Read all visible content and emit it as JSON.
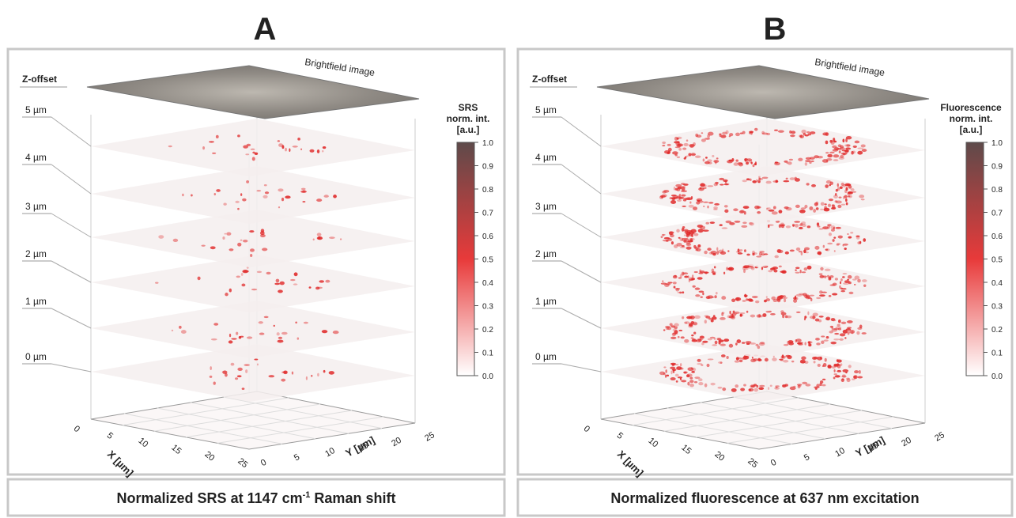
{
  "panels": [
    {
      "letter": "A",
      "z_label": "Z-offset",
      "brightfield": "Brightfield image",
      "z_levels": [
        "5 µm",
        "4 µm",
        "3 µm",
        "2 µm",
        "1 µm",
        "0 µm"
      ],
      "colorbar_title": [
        "SRS",
        "norm. int.",
        "[a.u.]"
      ],
      "colorbar_ticks": [
        "0.0",
        "0.1",
        "0.2",
        "0.3",
        "0.4",
        "0.5",
        "0.6",
        "0.7",
        "0.8",
        "0.9",
        "1.0"
      ],
      "x_axis_label": "X [µm]",
      "y_axis_label": "Y [µm]",
      "x_ticks": [
        "0",
        "5",
        "10",
        "15",
        "20",
        "25"
      ],
      "y_ticks": [
        "0",
        "5",
        "10",
        "15",
        "20",
        "25"
      ],
      "caption": {
        "main": "Normalized SRS at 1147 cm",
        "sup": "-1",
        "end": " Raman shift"
      }
    },
    {
      "letter": "B",
      "z_label": "Z-offset",
      "brightfield": "Brightfield image",
      "z_levels": [
        "5 µm",
        "4 µm",
        "3 µm",
        "2 µm",
        "1 µm",
        "0 µm"
      ],
      "colorbar_title": [
        "Fluorescence",
        "norm. int.",
        "[a.u.]"
      ],
      "colorbar_ticks": [
        "0.0",
        "0.1",
        "0.2",
        "0.3",
        "0.4",
        "0.5",
        "0.6",
        "0.7",
        "0.8",
        "0.9",
        "1.0"
      ],
      "x_axis_label": "X [µm]",
      "y_axis_label": "Y [µm]",
      "x_ticks": [
        "0",
        "5",
        "10",
        "15",
        "20",
        "25"
      ],
      "y_ticks": [
        "0",
        "5",
        "10",
        "15",
        "20",
        "25"
      ],
      "caption": {
        "main": "Normalized fluorescence at 637 nm excitation"
      }
    }
  ]
}
